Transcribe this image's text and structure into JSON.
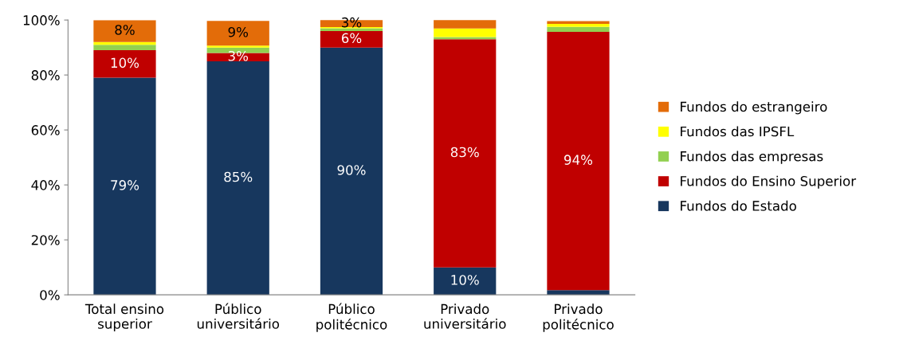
{
  "chart_data": {
    "type": "bar",
    "stacked": true,
    "categories": [
      "Total ensino\nsuperior",
      "Público\nuniversitário",
      "Público\npolitécnico",
      "Privado\nuniversitário",
      "Privado\npolitécnico"
    ],
    "series": [
      {
        "name": "Fundos do Estado",
        "color": "#17375e",
        "values": [
          79,
          85,
          90,
          10,
          1.7
        ],
        "value_labels": [
          "79%",
          "85%",
          "90%",
          "10%",
          null
        ]
      },
      {
        "name": "Fundos do Ensino Superior",
        "color": "#c00000",
        "values": [
          10,
          3,
          6,
          83,
          94
        ],
        "value_labels": [
          "10%",
          "3%",
          "6%",
          "83%",
          "94%"
        ]
      },
      {
        "name": "Fundos das empresas",
        "color": "#92d050",
        "values": [
          2,
          2,
          1,
          0.8,
          1.8
        ],
        "value_labels": [
          null,
          null,
          null,
          null,
          null
        ]
      },
      {
        "name": "Fundos das IPSFL",
        "color": "#ffff00",
        "values": [
          1,
          0.7,
          0.4,
          3.1,
          1.1
        ],
        "value_labels": [
          null,
          null,
          null,
          null,
          null
        ]
      },
      {
        "name": "Fundos do estrangeiro",
        "color": "#e36c09",
        "values": [
          8,
          9,
          3,
          3.5,
          1
        ],
        "value_labels": [
          "8%",
          "9%",
          "3%",
          null,
          null
        ]
      }
    ],
    "ylim": [
      0,
      100
    ],
    "yticks": [
      {
        "value": 0,
        "label": "0%"
      },
      {
        "value": 20,
        "label": "20%"
      },
      {
        "value": 40,
        "label": "40%"
      },
      {
        "value": 60,
        "label": "60%"
      },
      {
        "value": 80,
        "label": "80%"
      },
      {
        "value": 100,
        "label": "100%"
      }
    ],
    "grid": false,
    "legend": "right"
  }
}
